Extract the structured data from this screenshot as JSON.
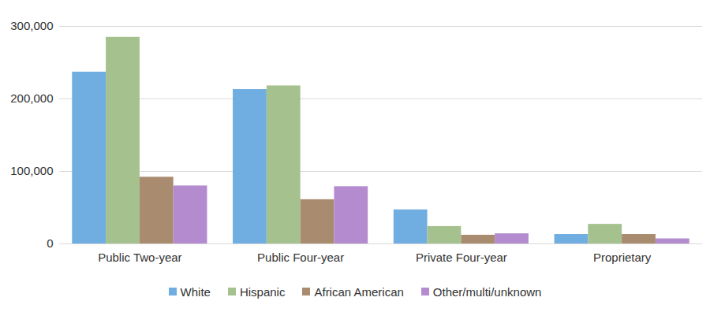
{
  "chart_data": {
    "type": "bar",
    "categories": [
      "Public Two-year",
      "Public Four-year",
      "Private Four-year",
      "Proprietary"
    ],
    "series": [
      {
        "name": "White",
        "color": "#70ADE0",
        "values": [
          237000,
          213000,
          47000,
          13000
        ]
      },
      {
        "name": "Hispanic",
        "color": "#A4C18E",
        "values": [
          285000,
          218000,
          24000,
          27000
        ]
      },
      {
        "name": "African American",
        "color": "#A98B6F",
        "values": [
          92000,
          61000,
          12000,
          13000
        ]
      },
      {
        "name": "Other/multi/unknown",
        "color": "#B48BCF",
        "values": [
          80000,
          79000,
          14000,
          7000
        ]
      }
    ],
    "ylim": [
      0,
      300000
    ],
    "yticks": [
      0,
      {
        "value": 100000,
        "label": "100,000"
      },
      {
        "value": 200000,
        "label": "200,000"
      },
      {
        "value": 300000,
        "label": "300,000"
      }
    ],
    "grid": true,
    "legend": "bottom"
  }
}
